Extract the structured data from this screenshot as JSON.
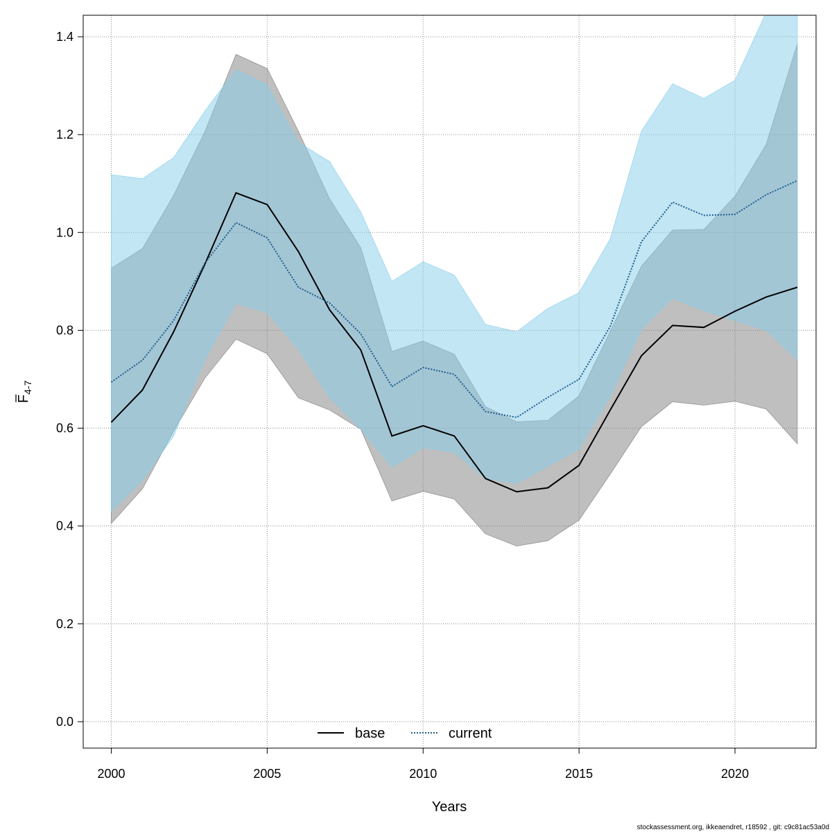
{
  "chart_data": {
    "type": "line",
    "title": "",
    "xlabel": "Years",
    "ylabel_main": "F",
    "ylabel_sub": "4-7",
    "xlim": [
      1999.1,
      2022.6
    ],
    "ylim": [
      -0.054,
      1.444
    ],
    "x_ticks": [
      2000,
      2005,
      2010,
      2015,
      2020
    ],
    "y_ticks": [
      0.0,
      0.2,
      0.4,
      0.6,
      0.8,
      1.0,
      1.2,
      1.4
    ],
    "y_tick_labels": [
      "0.0",
      "0.2",
      "0.4",
      "0.6",
      "0.8",
      "1.0",
      "1.2",
      "1.4"
    ],
    "grid": true,
    "legend_position": "bottom-center",
    "x": [
      2000,
      2001,
      2002,
      2003,
      2004,
      2005,
      2006,
      2007,
      2008,
      2009,
      2010,
      2011,
      2012,
      2013,
      2014,
      2015,
      2016,
      2017,
      2018,
      2019,
      2020,
      2021,
      2022
    ],
    "series": [
      {
        "name": "base",
        "line_color": "#000000",
        "band_color": "#808080",
        "dash": "solid",
        "values": [
          0.612,
          0.678,
          0.797,
          0.935,
          1.081,
          1.057,
          0.961,
          0.842,
          0.76,
          0.584,
          0.605,
          0.584,
          0.497,
          0.47,
          0.478,
          0.524,
          0.637,
          0.748,
          0.81,
          0.806,
          0.839,
          0.868,
          0.888
        ],
        "lower": [
          0.405,
          0.476,
          0.594,
          0.702,
          0.782,
          0.752,
          0.662,
          0.637,
          0.598,
          0.451,
          0.471,
          0.455,
          0.384,
          0.359,
          0.37,
          0.412,
          0.506,
          0.603,
          0.654,
          0.647,
          0.655,
          0.639,
          0.568
        ],
        "upper": [
          0.927,
          0.967,
          1.076,
          1.206,
          1.364,
          1.335,
          1.207,
          1.069,
          0.969,
          0.757,
          0.778,
          0.751,
          0.644,
          0.613,
          0.616,
          0.666,
          0.798,
          0.931,
          1.005,
          1.006,
          1.074,
          1.18,
          1.386
        ]
      },
      {
        "name": "current",
        "line_color": "#1a5a8a",
        "band_color": "#87ceeb",
        "dash": "dotted",
        "values": [
          0.694,
          0.739,
          0.82,
          0.937,
          1.02,
          0.989,
          0.888,
          0.856,
          0.793,
          0.685,
          0.724,
          0.71,
          0.634,
          0.622,
          0.663,
          0.7,
          0.808,
          0.981,
          1.062,
          1.035,
          1.037,
          1.077,
          1.106
        ],
        "lower": [
          0.43,
          0.493,
          0.584,
          0.74,
          0.855,
          0.836,
          0.762,
          0.663,
          0.598,
          0.52,
          0.56,
          0.551,
          0.497,
          0.487,
          0.522,
          0.558,
          0.665,
          0.802,
          0.866,
          0.84,
          0.82,
          0.8,
          0.74
        ],
        "upper": [
          1.118,
          1.11,
          1.153,
          1.248,
          1.333,
          1.302,
          1.184,
          1.145,
          1.042,
          0.9,
          0.94,
          0.913,
          0.812,
          0.797,
          0.845,
          0.877,
          0.987,
          1.207,
          1.304,
          1.274,
          1.311,
          1.45,
          1.45
        ]
      }
    ],
    "footnote": "stockassessment.org, ikkeaendret, r18592 , git: c9c81ac53a0d"
  }
}
